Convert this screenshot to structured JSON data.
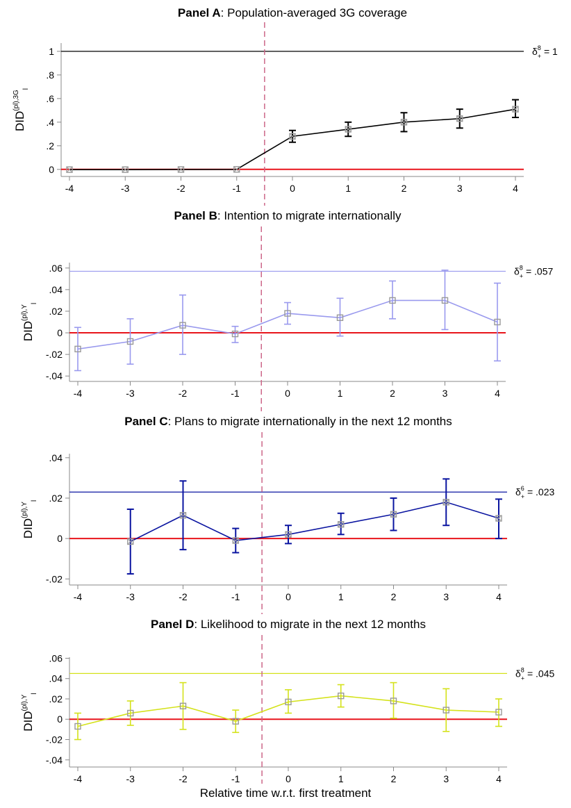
{
  "figure": {
    "xlabel": "Relative time w.r.t. first treatment"
  },
  "chart_data": [
    {
      "type": "line",
      "title_bold": "Panel A",
      "title_rest": ": Population-averaged 3G coverage",
      "ylabel_main": "DID",
      "ylabel_sup": "(pl),3G",
      "ylabel_sub": "l",
      "x": [
        -4,
        -3,
        -2,
        -1,
        0,
        1,
        2,
        3,
        4
      ],
      "y": [
        -0.002,
        -0.002,
        -0.001,
        0.0,
        0.28,
        0.34,
        0.4,
        0.43,
        0.51
      ],
      "ci_lo": [
        null,
        null,
        null,
        null,
        0.23,
        0.28,
        0.32,
        0.35,
        0.44
      ],
      "ci_hi": [
        null,
        null,
        null,
        null,
        0.33,
        0.4,
        0.48,
        0.51,
        0.59
      ],
      "ylim": [
        -0.06,
        1.07
      ],
      "yticks": [
        0,
        0.2,
        0.4,
        0.6,
        0.8,
        1
      ],
      "ytick_labels": [
        "0",
        ".2",
        ".4",
        ".6",
        ".8",
        "1"
      ],
      "xticks": [
        -4,
        -3,
        -2,
        -1,
        0,
        1,
        2,
        3,
        4
      ],
      "xtick_labels": [
        "-4",
        "-3",
        "-2",
        "-1",
        "0",
        "1",
        "2",
        "3",
        "4"
      ],
      "ref_line": {
        "value": 1,
        "label_delta": "δ",
        "label_sup": "8",
        "label_sub": "+",
        "label_value": " = 1"
      },
      "color": "#000000",
      "marker_style": "x",
      "zero_line_color": "#e8141b",
      "treatment_line_x": -0.5
    },
    {
      "type": "line",
      "title_bold": "Panel B",
      "title_rest": ": Intention to migrate internationally",
      "ylabel_main": "DID",
      "ylabel_sup": "(pl),Y",
      "ylabel_sub": "l",
      "x": [
        -4,
        -3,
        -2,
        -1,
        0,
        1,
        2,
        3,
        4
      ],
      "y": [
        -0.015,
        -0.008,
        0.007,
        -0.001,
        0.018,
        0.014,
        0.03,
        0.03,
        0.01
      ],
      "ci_lo": [
        -0.035,
        -0.029,
        -0.02,
        -0.009,
        0.008,
        -0.003,
        0.013,
        0.003,
        -0.026
      ],
      "ci_hi": [
        0.005,
        0.013,
        0.035,
        0.006,
        0.028,
        0.032,
        0.048,
        0.058,
        0.046
      ],
      "ylim": [
        -0.045,
        0.065
      ],
      "yticks": [
        -0.04,
        -0.02,
        0,
        0.02,
        0.04,
        0.06
      ],
      "ytick_labels": [
        "-.04",
        "-.02",
        "0",
        ".02",
        ".04",
        ".06"
      ],
      "xticks": [
        -4,
        -3,
        -2,
        -1,
        0,
        1,
        2,
        3,
        4
      ],
      "xtick_labels": [
        "-4",
        "-3",
        "-2",
        "-1",
        "0",
        "1",
        "2",
        "3",
        "4"
      ],
      "ref_line": {
        "value": 0.057,
        "label_delta": "δ",
        "label_sup": "8",
        "label_sub": "+",
        "label_value": " = .057"
      },
      "color": "#9999ee",
      "marker_style": "square",
      "zero_line_color": "#e8141b",
      "treatment_line_x": -0.5
    },
    {
      "type": "line",
      "title_bold": "Panel C",
      "title_rest": ": Plans to migrate internationally in the next 12 months",
      "ylabel_main": "DID",
      "ylabel_sup": "(pl),Y",
      "ylabel_sub": "l",
      "x": [
        -3,
        -2,
        -1,
        0,
        1,
        2,
        3,
        4
      ],
      "y": [
        -0.0015,
        0.0115,
        -0.001,
        0.002,
        0.007,
        0.012,
        0.018,
        0.01
      ],
      "ci_lo": [
        -0.0175,
        -0.0055,
        -0.007,
        -0.0025,
        0.002,
        0.004,
        0.0065,
        0.0
      ],
      "ci_hi": [
        0.0145,
        0.0285,
        0.005,
        0.0065,
        0.0125,
        0.02,
        0.0295,
        0.0195
      ],
      "ylim": [
        -0.023,
        0.042
      ],
      "yticks": [
        -0.02,
        0,
        0.02,
        0.04
      ],
      "ytick_labels": [
        "-.02",
        "0",
        ".02",
        ".04"
      ],
      "xticks": [
        -4,
        -3,
        -2,
        -1,
        0,
        1,
        2,
        3,
        4
      ],
      "xtick_labels": [
        "-4",
        "-3",
        "-2",
        "-1",
        "0",
        "1",
        "2",
        "3",
        "4"
      ],
      "ref_line": {
        "value": 0.023,
        "label_delta": "δ",
        "label_sup": "6",
        "label_sub": "+",
        "label_value": " = .023"
      },
      "color": "#0a14a0",
      "marker_style": "x",
      "zero_line_color": "#e8141b",
      "treatment_line_x": -0.5
    },
    {
      "type": "line",
      "title_bold": "Panel D",
      "title_rest": ": Likelihood to migrate in the next 12 months",
      "ylabel_main": "DID",
      "ylabel_sup": "(pl),Y",
      "ylabel_sub": "l",
      "x": [
        -4,
        -3,
        -2,
        -1,
        0,
        1,
        2,
        3,
        4
      ],
      "y": [
        -0.007,
        0.006,
        0.013,
        -0.002,
        0.017,
        0.023,
        0.018,
        0.009,
        0.007
      ],
      "ci_lo": [
        -0.02,
        -0.006,
        -0.01,
        -0.013,
        0.006,
        0.012,
        0.001,
        -0.012,
        -0.007
      ],
      "ci_hi": [
        0.006,
        0.018,
        0.036,
        0.009,
        0.029,
        0.034,
        0.036,
        0.03,
        0.02
      ],
      "ylim": [
        -0.047,
        0.061
      ],
      "yticks": [
        -0.04,
        -0.02,
        0,
        0.02,
        0.04,
        0.06
      ],
      "ytick_labels": [
        "-.04",
        "-.02",
        "0",
        ".02",
        ".04",
        ".06"
      ],
      "xticks": [
        -4,
        -3,
        -2,
        -1,
        0,
        1,
        2,
        3,
        4
      ],
      "xtick_labels": [
        "-4",
        "-3",
        "-2",
        "-1",
        "0",
        "1",
        "2",
        "3",
        "4"
      ],
      "ref_line": {
        "value": 0.045,
        "label_delta": "δ",
        "label_sup": "8",
        "label_sub": "+",
        "label_value": " = .045"
      },
      "color": "#d4e21a",
      "marker_style": "square",
      "zero_line_color": "#e8141b",
      "treatment_line_x": -0.5
    }
  ]
}
